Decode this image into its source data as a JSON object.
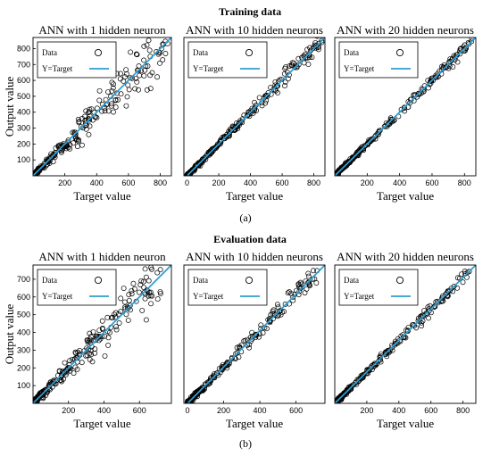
{
  "figure": {
    "captions": [
      "(a)",
      "(b)"
    ]
  },
  "chart_data": [
    {
      "section": "Training data",
      "type": "scatter",
      "title": "ANN with 1 hidden neuron",
      "xlabel": "Target value",
      "ylabel": "Output value",
      "xlim": [
        0,
        870
      ],
      "ylim": [
        0,
        870
      ],
      "xticks": [
        200,
        400,
        600,
        800
      ],
      "yticks": [
        100,
        200,
        300,
        400,
        500,
        600,
        700,
        800
      ],
      "legend": {
        "location": "top-left",
        "entries": [
          "Data",
          "Y=Target"
        ]
      },
      "series": [
        {
          "name": "Data",
          "kind": "scatter",
          "spread": 0.12,
          "xmax": 850
        },
        {
          "name": "Y=Target",
          "kind": "line",
          "x": [
            0,
            870
          ],
          "y": [
            0,
            870
          ]
        }
      ]
    },
    {
      "section": "Training data",
      "type": "scatter",
      "title": "ANN with 10 hidden neurons",
      "xlabel": "Target value",
      "ylabel": "",
      "xlim": [
        -20,
        870
      ],
      "ylim": [
        0,
        870
      ],
      "xticks": [
        0,
        200,
        400,
        600,
        800
      ],
      "yticks": [],
      "legend": {
        "location": "top-left",
        "entries": [
          "Data",
          "Y=Target"
        ]
      },
      "series": [
        {
          "name": "Data",
          "kind": "scatter",
          "spread": 0.035,
          "xmax": 860
        },
        {
          "name": "Y=Target",
          "kind": "line",
          "x": [
            0,
            870
          ],
          "y": [
            0,
            870
          ]
        }
      ]
    },
    {
      "section": "Training data",
      "type": "scatter",
      "title": "ANN with 20 hidden neurons",
      "xlabel": "Target value",
      "ylabel": "",
      "xlim": [
        0,
        870
      ],
      "ylim": [
        0,
        870
      ],
      "xticks": [
        200,
        400,
        600,
        800
      ],
      "yticks": [],
      "legend": {
        "location": "top-left",
        "entries": [
          "Data",
          "Y=Target"
        ]
      },
      "series": [
        {
          "name": "Data",
          "kind": "scatter",
          "spread": 0.02,
          "xmax": 850
        },
        {
          "name": "Y=Target",
          "kind": "line",
          "x": [
            0,
            870
          ],
          "y": [
            0,
            870
          ]
        }
      ]
    },
    {
      "section": "Evaluation data",
      "type": "scatter",
      "title": "ANN with 1 hidden neuron",
      "xlabel": "Target value",
      "ylabel": "Output value",
      "xlim": [
        0,
        780
      ],
      "ylim": [
        0,
        780
      ],
      "xticks": [
        200,
        400,
        600
      ],
      "yticks": [
        100,
        200,
        300,
        400,
        500,
        600,
        700
      ],
      "legend": {
        "location": "top-left",
        "entries": [
          "Data",
          "Y=Target"
        ]
      },
      "series": [
        {
          "name": "Data",
          "kind": "scatter",
          "spread": 0.13,
          "xmax": 720
        },
        {
          "name": "Y=Target",
          "kind": "line",
          "x": [
            0,
            780
          ],
          "y": [
            0,
            780
          ]
        }
      ]
    },
    {
      "section": "Evaluation data",
      "type": "scatter",
      "title": "ANN with 10 hidden neurons",
      "xlabel": "Target value",
      "ylabel": "",
      "xlim": [
        -20,
        760
      ],
      "ylim": [
        0,
        760
      ],
      "xticks": [
        0,
        200,
        400,
        600
      ],
      "yticks": [],
      "legend": {
        "location": "top-left",
        "entries": [
          "Data",
          "Y=Target"
        ]
      },
      "series": [
        {
          "name": "Data",
          "kind": "scatter",
          "spread": 0.05,
          "xmax": 720
        },
        {
          "name": "Y=Target",
          "kind": "line",
          "x": [
            0,
            760
          ],
          "y": [
            0,
            760
          ]
        }
      ]
    },
    {
      "section": "Evaluation data",
      "type": "scatter",
      "title": "ANN with 20 hidden neurons",
      "xlabel": "Target value",
      "ylabel": "",
      "xlim": [
        0,
        880
      ],
      "ylim": [
        0,
        880
      ],
      "xticks": [
        200,
        400,
        600,
        800
      ],
      "yticks": [],
      "legend": {
        "location": "top-left",
        "entries": [
          "Data",
          "Y=Target"
        ]
      },
      "series": [
        {
          "name": "Data",
          "kind": "scatter",
          "spread": 0.03,
          "xmax": 840
        },
        {
          "name": "Y=Target",
          "kind": "line",
          "x": [
            0,
            880
          ],
          "y": [
            0,
            880
          ]
        }
      ]
    }
  ],
  "colors": {
    "data": "#000000",
    "fit_line": "#2e9fd0",
    "axes": "#000000"
  }
}
